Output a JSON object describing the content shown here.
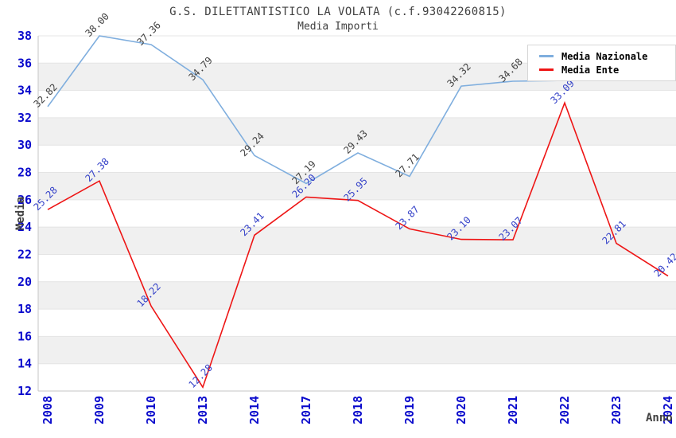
{
  "chart_data": {
    "type": "line",
    "title": "G.S. DILETTANTISTICO LA VOLATA (c.f.93042260815)",
    "subtitle": "Media Importi",
    "xlabel": "Anno",
    "ylabel": "Media",
    "ylim": [
      12,
      38
    ],
    "y_ticks": [
      12,
      14,
      16,
      18,
      20,
      22,
      24,
      26,
      28,
      30,
      32,
      34,
      36,
      38
    ],
    "categories": [
      "2008",
      "2009",
      "2010",
      "2013",
      "2014",
      "2017",
      "2018",
      "2019",
      "2020",
      "2021",
      "2022",
      "2023",
      "2024"
    ],
    "grid": "horizontal-bands-alternating",
    "legend_position": "top-right",
    "series": [
      {
        "name": "Media Nazionale",
        "color": "#7faede",
        "label_color": "#404040",
        "values": [
          32.82,
          38.0,
          37.36,
          34.79,
          29.24,
          27.19,
          29.43,
          27.71,
          34.32,
          34.68,
          34.73,
          34.78,
          34.83
        ],
        "point_labels": [
          "32.82",
          "38.00",
          "37.36",
          "34.79",
          "29.24",
          "27.19",
          "29.43",
          "27.71",
          "34.32",
          "34.68",
          null,
          null,
          "34.83"
        ]
      },
      {
        "name": "Media Ente",
        "color": "#ee1515",
        "label_color": "#3340c8",
        "values": [
          25.28,
          27.38,
          18.22,
          12.28,
          23.41,
          26.2,
          25.95,
          23.87,
          23.1,
          23.07,
          33.09,
          22.81,
          20.42
        ],
        "point_labels": [
          "25.28",
          "27.38",
          "18.22",
          "12.28",
          "23.41",
          "26.20",
          "25.95",
          "23.87",
          "23.10",
          "23.07",
          "33.09",
          "22.81",
          "20.42"
        ]
      }
    ],
    "colors": {
      "band_gray": "#f0f0f0",
      "band_white": "#ffffff",
      "gridline": "#e4e4e4",
      "axis_line": "#c6c6c6",
      "tick_label": "#0a0acc",
      "axis_title": "#404040",
      "title_text": "#404040",
      "legend_border": "#d6d6d6",
      "legend_bg": "#ffffff",
      "legend_text": "#000000"
    }
  }
}
